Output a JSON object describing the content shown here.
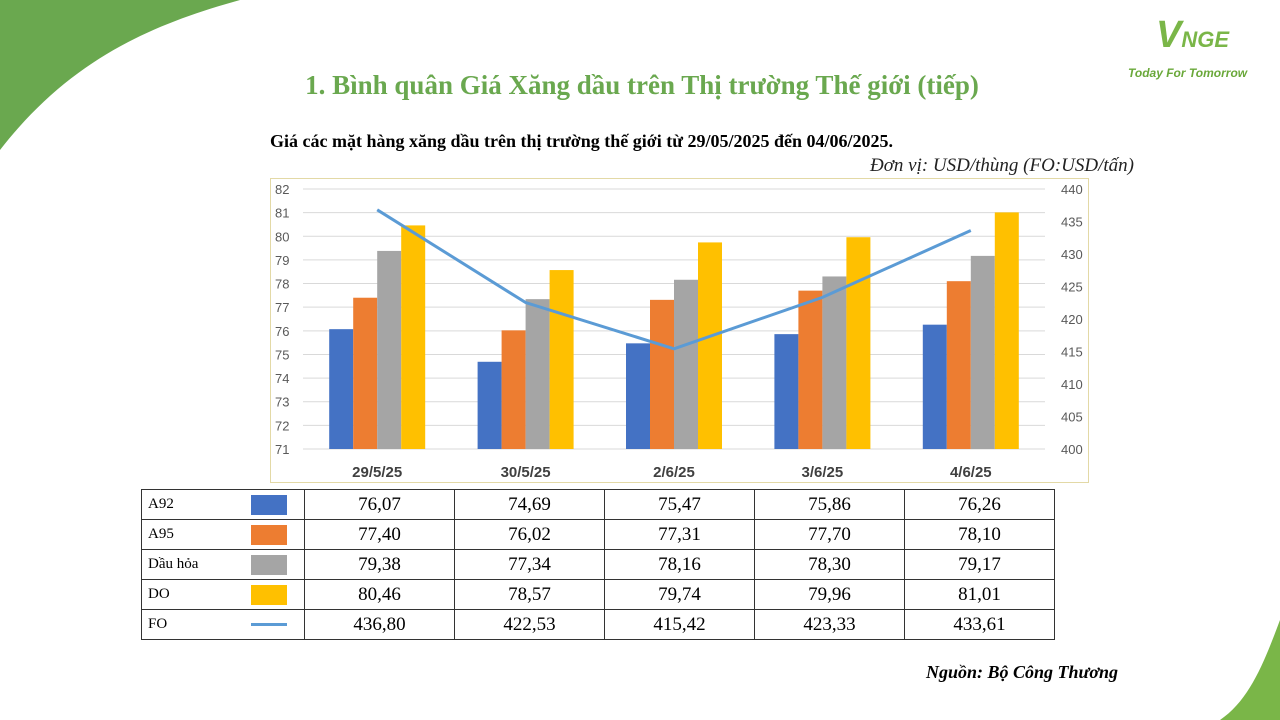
{
  "logo": {
    "name": "VNGE",
    "tagline": "Today For Tomorrow"
  },
  "title": "1. Bình quân Giá Xăng dầu trên Thị trường Thế giới (tiếp)",
  "subtitle": "Giá các mặt hàng xăng dầu trên thị trường thế giới từ 29/05/2025 đến 04/06/2025.",
  "unit": "Đơn vị: USD/thùng (FO:USD/tấn)",
  "source": "Nguồn: Bộ Công Thương",
  "colors": {
    "brand": "#7ab648",
    "a92": "#4472c4",
    "a95": "#ed7d31",
    "dau_hoa": "#a5a5a5",
    "do": "#ffc000",
    "fo": "#5b9bd5"
  },
  "chart_data": {
    "type": "bar",
    "categories": [
      "29/5/25",
      "30/5/25",
      "2/6/25",
      "3/6/25",
      "4/6/25"
    ],
    "ylim": [
      71,
      82
    ],
    "y_ticks": [
      "82",
      "81",
      "80",
      "79",
      "78",
      "77",
      "76",
      "75",
      "74",
      "73",
      "72",
      "71"
    ],
    "y2lim": [
      400,
      440
    ],
    "y2_ticks": [
      "440",
      "435",
      "430",
      "425",
      "420",
      "415",
      "410",
      "405",
      "400"
    ],
    "grid": true,
    "series": [
      {
        "name": "A92",
        "type": "bar",
        "axis": "left",
        "values": [
          76.07,
          74.69,
          75.47,
          75.86,
          76.26
        ]
      },
      {
        "name": "A95",
        "type": "bar",
        "axis": "left",
        "values": [
          77.4,
          76.02,
          77.31,
          77.7,
          78.1
        ]
      },
      {
        "name": "Dầu hỏa",
        "type": "bar",
        "axis": "left",
        "values": [
          79.38,
          77.34,
          78.16,
          78.3,
          79.17
        ]
      },
      {
        "name": "DO",
        "type": "bar",
        "axis": "left",
        "values": [
          80.46,
          78.57,
          79.74,
          79.96,
          81.01
        ]
      },
      {
        "name": "FO",
        "type": "line",
        "axis": "right",
        "values": [
          436.8,
          422.53,
          415.42,
          423.33,
          433.61
        ]
      }
    ]
  },
  "table": {
    "rows": [
      {
        "label": "A92",
        "values": [
          "76,07",
          "74,69",
          "75,47",
          "75,86",
          "76,26"
        ]
      },
      {
        "label": "A95",
        "values": [
          "77,40",
          "76,02",
          "77,31",
          "77,70",
          "78,10"
        ]
      },
      {
        "label": "Dầu hỏa",
        "values": [
          "79,38",
          "77,34",
          "78,16",
          "78,30",
          "79,17"
        ]
      },
      {
        "label": "DO",
        "values": [
          "80,46",
          "78,57",
          "79,74",
          "79,96",
          "81,01"
        ]
      },
      {
        "label": "FO",
        "values": [
          "436,80",
          "422,53",
          "415,42",
          "423,33",
          "433,61"
        ]
      }
    ]
  }
}
